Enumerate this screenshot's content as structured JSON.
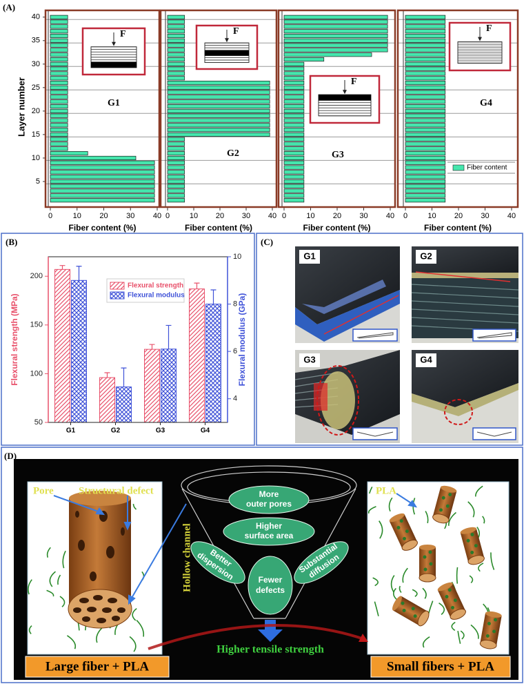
{
  "panel_labels": [
    "(A)",
    "(B)",
    "(C)",
    "(D)"
  ],
  "chart_data": [
    {
      "type": "barh",
      "annotation": "G1",
      "inset_label": "F",
      "xlabel": "Fiber content (%)",
      "ylabel": "Layer number",
      "xlim": [
        0,
        40
      ],
      "xticks": [
        0,
        10,
        20,
        30,
        40
      ],
      "ylim": [
        0,
        41
      ],
      "yticks": [
        5,
        10,
        15,
        20,
        25,
        30,
        35,
        40
      ],
      "show_ytick_labels": true,
      "grid": true,
      "legend": false,
      "y": [
        1,
        2,
        3,
        4,
        5,
        6,
        7,
        8,
        9,
        10,
        11,
        12,
        13,
        14,
        15,
        16,
        17,
        18,
        19,
        20,
        21,
        22,
        23,
        24,
        25,
        26,
        27,
        28,
        29,
        30,
        31,
        32,
        33,
        34,
        35,
        36,
        37,
        38,
        39,
        40
      ],
      "series": [
        {
          "name": "Fiber content",
          "color": "#45e6ad",
          "values": [
            39,
            39,
            39,
            39,
            39,
            39,
            39,
            39,
            39,
            32,
            14,
            6.5,
            6.5,
            6.5,
            6.5,
            6.5,
            6.5,
            6.5,
            6.5,
            6.5,
            6.5,
            6.5,
            6.5,
            6.5,
            6.5,
            6.5,
            6.5,
            6.5,
            6.5,
            6.5,
            6.5,
            6.5,
            6.5,
            6.5,
            6.5,
            6.5,
            6.5,
            6.5,
            6.5,
            6.5
          ]
        }
      ]
    },
    {
      "type": "barh",
      "annotation": "G2",
      "inset_label": "F",
      "xlabel": "Fiber content (%)",
      "xlim": [
        0,
        40
      ],
      "xticks": [
        0,
        10,
        20,
        30,
        40
      ],
      "ylim": [
        0,
        41
      ],
      "yticks": [
        5,
        10,
        15,
        20,
        25,
        30,
        35,
        40
      ],
      "show_ytick_labels": false,
      "grid": true,
      "legend": false,
      "y": [
        1,
        2,
        3,
        4,
        5,
        6,
        7,
        8,
        9,
        10,
        11,
        12,
        13,
        14,
        15,
        16,
        17,
        18,
        19,
        20,
        21,
        22,
        23,
        24,
        25,
        26,
        27,
        28,
        29,
        30,
        31,
        32,
        33,
        34,
        35,
        36,
        37,
        38,
        39,
        40
      ],
      "series": [
        {
          "name": "Fiber content",
          "color": "#45e6ad",
          "values": [
            6.5,
            6.5,
            6.5,
            6.5,
            6.5,
            6.5,
            6.5,
            6.5,
            6.5,
            6.5,
            6.5,
            6.5,
            6.5,
            6.5,
            39,
            39,
            39,
            39,
            39,
            39,
            39,
            39,
            39,
            39,
            39,
            39,
            6.5,
            6.5,
            6.5,
            6.5,
            6.5,
            6.5,
            6.5,
            6.5,
            6.5,
            6.5,
            6.5,
            6.5,
            6.5,
            6.5
          ]
        }
      ]
    },
    {
      "type": "barh",
      "annotation": "G3",
      "inset_label": "F",
      "xlabel": "Fiber content (%)",
      "xlim": [
        0,
        40
      ],
      "xticks": [
        0,
        10,
        20,
        30,
        40
      ],
      "ylim": [
        0,
        41
      ],
      "yticks": [
        5,
        10,
        15,
        20,
        25,
        30,
        35,
        40
      ],
      "show_ytick_labels": false,
      "grid": true,
      "legend": false,
      "y": [
        1,
        2,
        3,
        4,
        5,
        6,
        7,
        8,
        9,
        10,
        11,
        12,
        13,
        14,
        15,
        16,
        17,
        18,
        19,
        20,
        21,
        22,
        23,
        24,
        25,
        26,
        27,
        28,
        29,
        30,
        31,
        32,
        33,
        34,
        35,
        36,
        37,
        38,
        39,
        40
      ],
      "series": [
        {
          "name": "Fiber content",
          "color": "#45e6ad",
          "values": [
            7.5,
            7.5,
            7.5,
            7.5,
            7.5,
            7.5,
            7.5,
            7.5,
            7.5,
            7.5,
            7.5,
            7.5,
            7.5,
            7.5,
            7.5,
            7.5,
            7.5,
            7.5,
            7.5,
            7.5,
            7.5,
            7.5,
            7.5,
            7.5,
            7.5,
            7.5,
            7.5,
            7.5,
            7.5,
            7.5,
            15,
            33,
            39,
            39,
            39,
            39,
            39,
            39,
            39,
            39
          ]
        }
      ]
    },
    {
      "type": "barh",
      "annotation": "G4",
      "inset_label": "F",
      "xlabel": "Fiber content (%)",
      "xlim": [
        0,
        40
      ],
      "xticks": [
        0,
        10,
        20,
        30,
        40
      ],
      "ylim": [
        0,
        41
      ],
      "yticks": [
        5,
        10,
        15,
        20,
        25,
        30,
        35,
        40
      ],
      "show_ytick_labels": false,
      "grid": true,
      "legend": true,
      "legend_position": "lower right",
      "y": [
        1,
        2,
        3,
        4,
        5,
        6,
        7,
        8,
        9,
        10,
        11,
        12,
        13,
        14,
        15,
        16,
        17,
        18,
        19,
        20,
        21,
        22,
        23,
        24,
        25,
        26,
        27,
        28,
        29,
        30,
        31,
        32,
        33,
        34,
        35,
        36,
        37,
        38,
        39,
        40
      ],
      "series": [
        {
          "name": "Fiber content",
          "color": "#45e6ad",
          "values": [
            15,
            15,
            15,
            15,
            15,
            15,
            15,
            15,
            15,
            15,
            15,
            15,
            15,
            15,
            15,
            15,
            15,
            15,
            15,
            15,
            15,
            15,
            15,
            15,
            15,
            15,
            15,
            15,
            15,
            15,
            15,
            15,
            15,
            15,
            15,
            15,
            15,
            15,
            15,
            15
          ]
        }
      ]
    },
    {
      "type": "bar",
      "categories": [
        "G1",
        "G2",
        "G3",
        "G4"
      ],
      "ylabel": "Flexural strength (MPa)",
      "y2label": "Flexural modulus (GPa)",
      "ylim": [
        50,
        220
      ],
      "yticks": [
        50,
        100,
        150,
        200
      ],
      "y2lim": [
        3,
        10
      ],
      "y2ticks": [
        4,
        6,
        8,
        10
      ],
      "legend": true,
      "legend_position": "upper center",
      "series": [
        {
          "name": "Flexural strength",
          "color": "#e8506a",
          "hatch": "diagonal",
          "values": [
            207,
            96,
            125,
            187
          ],
          "errors": [
            4,
            5,
            5,
            6
          ]
        },
        {
          "name": "Flexural modulus",
          "color": "#3f52d8",
          "hatch": "cross",
          "axis": "y2",
          "values": [
            9,
            4.5,
            6.1,
            8
          ],
          "errors": [
            0.6,
            0.8,
            1,
            0.6
          ]
        }
      ]
    }
  ],
  "panel_c": {
    "photo_labels": [
      "G1",
      "G2",
      "G3",
      "G4"
    ]
  },
  "panel_d": {
    "left_labels": [
      "Pore",
      "Structural defect"
    ],
    "hollow_channel": "Hollow channel",
    "funnel_items": [
      [
        "More",
        "outer pores"
      ],
      [
        "Higher",
        "surface area"
      ],
      [
        "Better",
        "dispersion"
      ],
      [
        "Substantial",
        "diffusion"
      ],
      [
        "Fewer",
        "defects"
      ]
    ],
    "result": "Higher tensile strength",
    "right_label": "PLA",
    "left_caption": "Large fiber + PLA",
    "right_caption": "Small fibers + PLA"
  }
}
